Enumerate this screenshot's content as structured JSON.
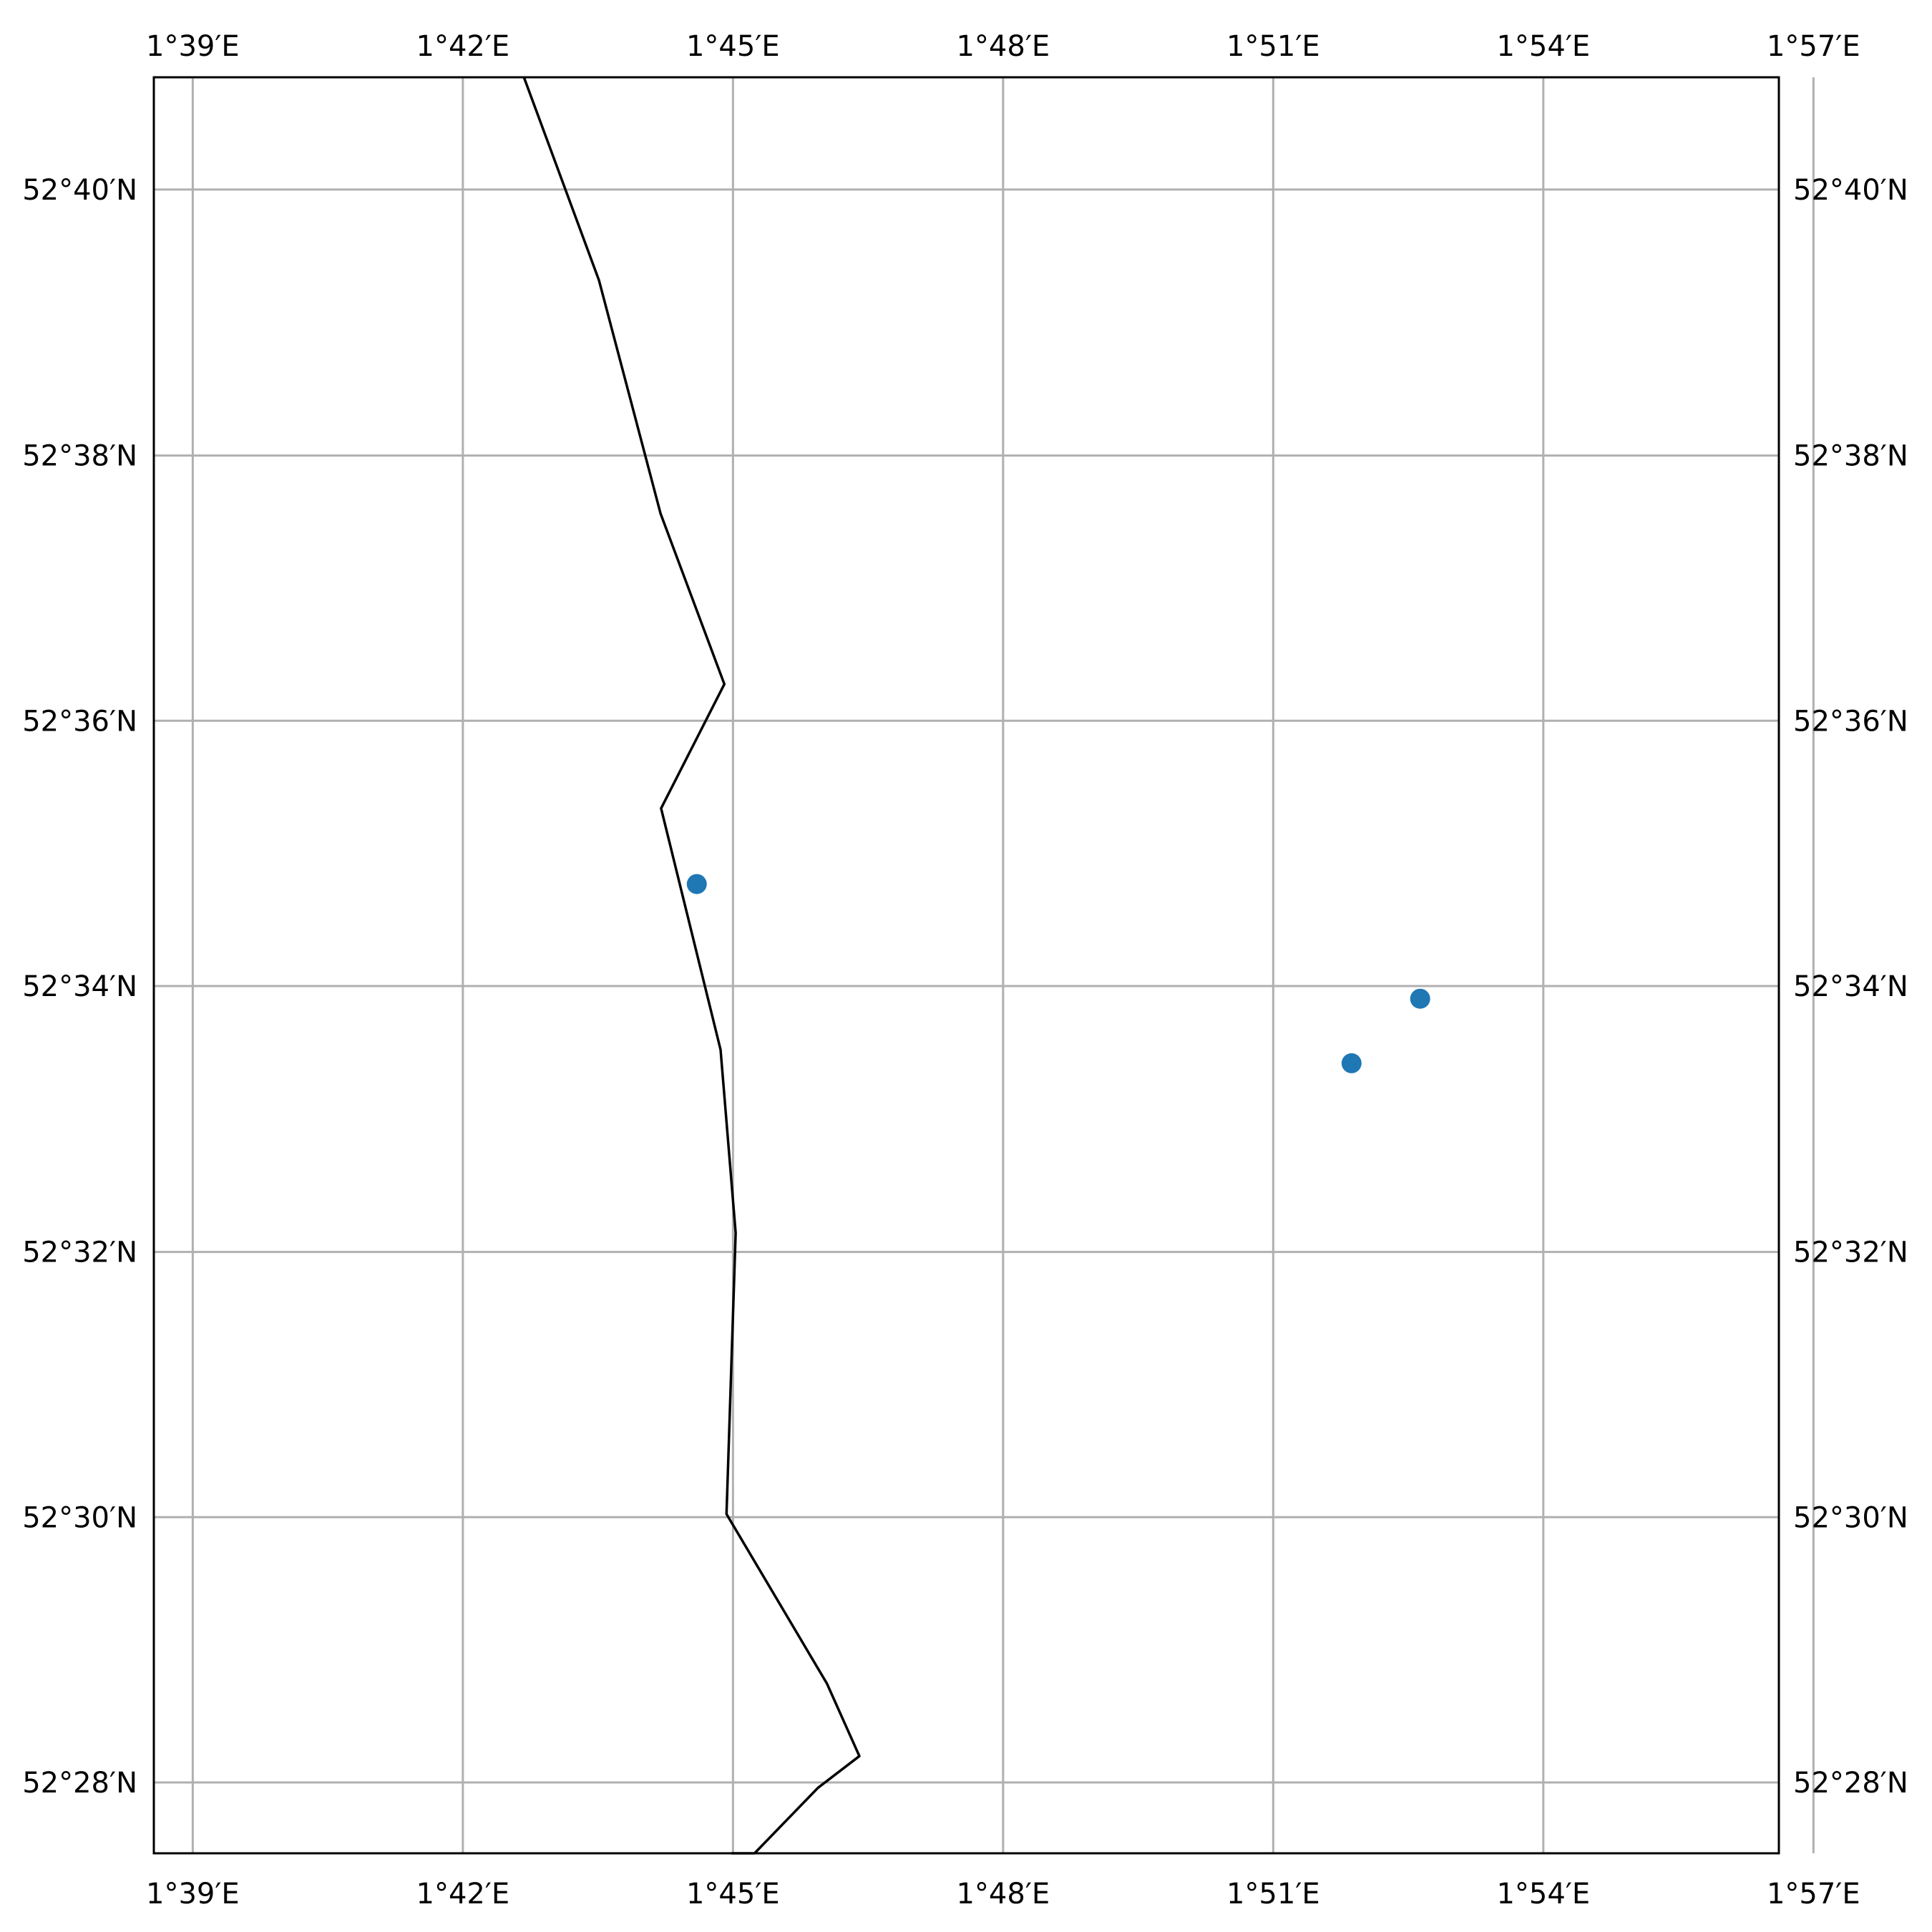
{
  "chart_data": {
    "type": "scatter",
    "projection": "PlateCarree",
    "xlim": [
      1.6428,
      1.9436
    ],
    "ylim": [
      52.4578,
      52.6808
    ],
    "grid": true,
    "x_ticks": [
      1.65,
      1.7,
      1.75,
      1.8,
      1.85,
      1.9,
      1.95
    ],
    "x_tick_labels": [
      "1°39′E",
      "1°42′E",
      "1°45′E",
      "1°48′E",
      "1°51′E",
      "1°54′E",
      "1°57′E"
    ],
    "y_ticks": [
      52.4667,
      52.5,
      52.5333,
      52.5667,
      52.6,
      52.6333,
      52.6667
    ],
    "y_tick_labels": [
      "52°28′N",
      "52°30′N",
      "52°32′N",
      "52°34′N",
      "52°36′N",
      "52°38′N",
      "52°40′N"
    ],
    "coastline": {
      "color": "#000000",
      "lon": [
        1.7113,
        1.7252,
        1.7366,
        1.7484,
        1.7367,
        1.7477,
        1.7505,
        1.7488,
        1.7674,
        1.7734,
        1.7657,
        1.754,
        1.7497
      ],
      "lat": [
        52.6808,
        52.6553,
        52.626,
        52.6046,
        52.589,
        52.5587,
        52.5357,
        52.5004,
        52.4791,
        52.47,
        52.466,
        52.4578,
        52.4578
      ]
    },
    "points": {
      "color": "#1f77b4",
      "lon": [
        1.7433,
        1.8645,
        1.8772
      ],
      "lat": [
        52.5795,
        52.557,
        52.5651
      ]
    }
  }
}
